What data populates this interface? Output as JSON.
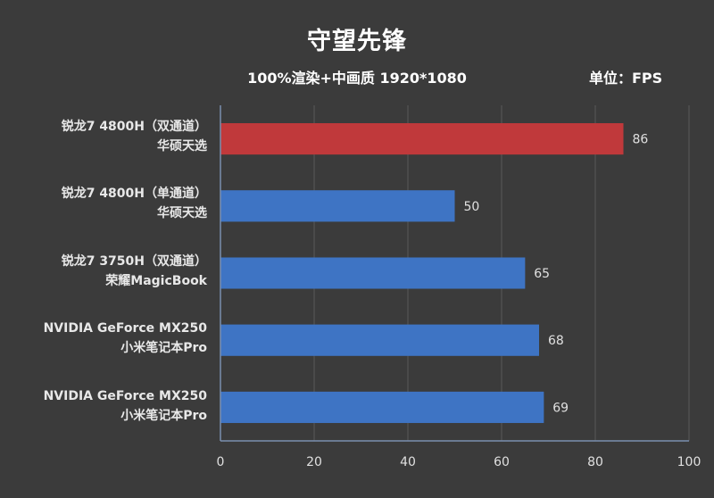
{
  "chart_data": {
    "type": "bar",
    "orientation": "horizontal",
    "title": "守望先锋",
    "subtitle": "100%渲染+中画质 1920*1080",
    "unit_label": "单位：FPS",
    "categories": [
      [
        "锐龙7 4800H（双通道）",
        "华硕天选"
      ],
      [
        "锐龙7 4800H（单通道）",
        "华硕天选"
      ],
      [
        "锐龙7 3750H（双通道）",
        "荣耀MagicBook"
      ],
      [
        "NVIDIA GeForce MX250",
        "小米笔记本Pro"
      ],
      [
        "NVIDIA GeForce MX250",
        "小米笔记本Pro"
      ]
    ],
    "values": [
      86,
      50,
      65,
      68,
      69
    ],
    "bar_colors": [
      "#c0393b",
      "#3e74c4",
      "#3e74c4",
      "#3e74c4",
      "#3e74c4"
    ],
    "xlim": [
      0,
      100
    ],
    "xticks": [
      0,
      20,
      40,
      60,
      80,
      100
    ],
    "grid": true,
    "colors": {
      "background": "#3b3b3b",
      "gridline": "#5a5a5a",
      "axis": "#7a8fb0",
      "highlight_bar": "#c0393b",
      "bar": "#3e74c4"
    }
  }
}
